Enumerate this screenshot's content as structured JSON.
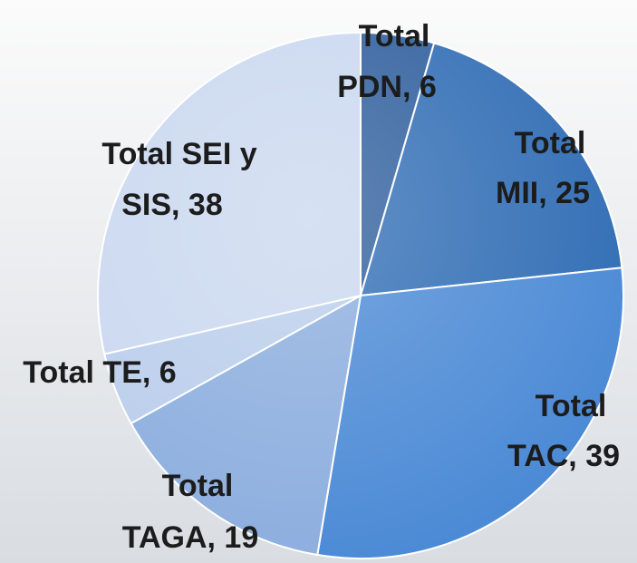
{
  "chart_data": {
    "type": "pie",
    "values": [
      6,
      25,
      39,
      19,
      6,
      38
    ],
    "value_labels": [
      [
        "Total",
        "PDN, 6"
      ],
      [
        "Total",
        "MII, 25"
      ],
      [
        "Total",
        "TAC, 39"
      ],
      [
        "Total",
        "TAGA, 19"
      ],
      [
        "Total TE, 6"
      ],
      [
        "Total SEI y",
        "SIS, 38"
      ]
    ],
    "colors": [
      "#2d5d9c",
      "#2f6cb4",
      "#4a89d5",
      "#8badde",
      "#b9cdeb",
      "#c9d7ef"
    ]
  }
}
